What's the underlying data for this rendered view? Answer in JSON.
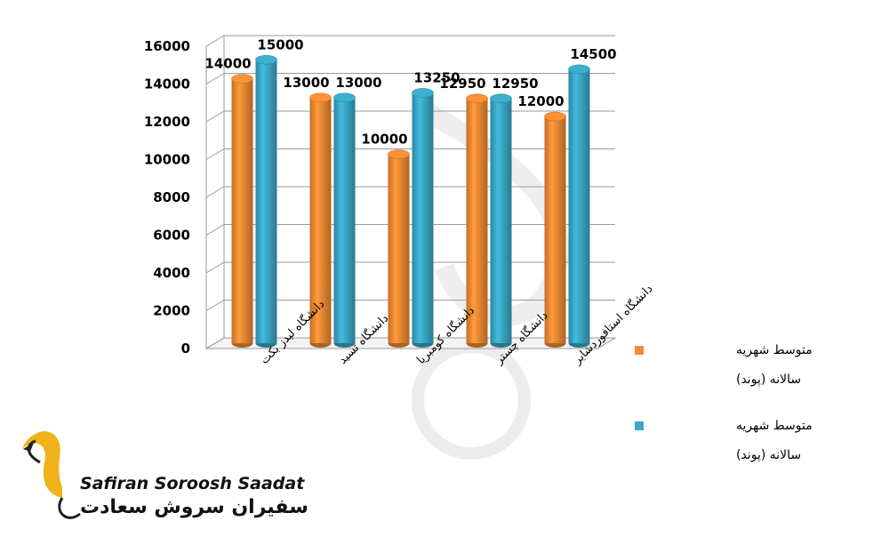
{
  "chart_data": {
    "type": "bar",
    "categories": [
      "دانشگاه لیدز بکت",
      "دانشگاه تسید",
      "دانشگاه کومبریا",
      "دانشگاه چستر",
      "دانشگاه استافوردشایر"
    ],
    "series": [
      {
        "name": "متوسط شهریه سالانه (پوند)",
        "values": [
          14000,
          13000,
          10000,
          12950,
          12000
        ],
        "color": "#f58a33"
      },
      {
        "name": "متوسط شهریه سالانه (پوند)",
        "values": [
          15000,
          13000,
          13250,
          12950,
          14500
        ],
        "color": "#3aa8c6"
      }
    ],
    "ylim": [
      0,
      16000
    ],
    "yticks": [
      "16000",
      "14000",
      "12000",
      "10000",
      "8000",
      "6000",
      "4000",
      "2000",
      "0"
    ],
    "grid": true,
    "legend_position": "right"
  },
  "watermark": {
    "brand_en": "Safiran Soroosh Saadat",
    "brand_fa": "سفیران سروش سعادت",
    "logo_icon": "golden-swan-logo-icon",
    "accent_color": "#f0b21a"
  },
  "colors": {
    "grid": "#9a9a9a",
    "wall": "#ffffff"
  }
}
